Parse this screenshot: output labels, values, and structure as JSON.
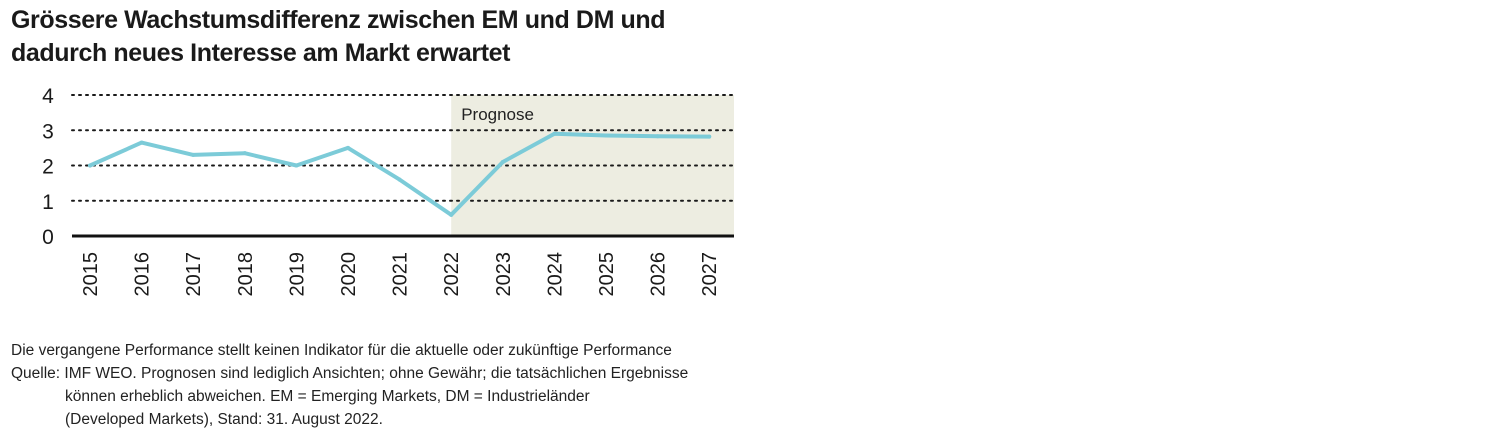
{
  "chart_data": {
    "type": "line",
    "title": "Grössere Wachstumsdifferenz zwischen EM und DM und dadurch neues Interesse am Markt erwartet",
    "xlabel": "",
    "ylabel": "",
    "x": [
      "2015",
      "2016",
      "2017",
      "2018",
      "2019",
      "2020",
      "2021",
      "2022",
      "2023",
      "2024",
      "2025",
      "2026",
      "2027"
    ],
    "series": [
      {
        "values": [
          2.0,
          2.65,
          2.3,
          2.35,
          2.0,
          2.5,
          1.6,
          0.6,
          2.1,
          2.9,
          2.85,
          2.83,
          2.82
        ]
      }
    ],
    "ylim": [
      0,
      4
    ],
    "yticks": [
      "0",
      "1",
      "2",
      "3",
      "4"
    ],
    "grid": true,
    "forecast_region": {
      "label": "Prognose",
      "start": "2022"
    },
    "colors": {
      "line": "#7ccbd8",
      "forecast_bg": "#edede1",
      "grid": "#1a1a1a",
      "axis": "#111111"
    }
  },
  "notes": {
    "line1": "Die vergangene Performance stellt keinen Indikator für die aktuelle oder zukünftige Performance",
    "line2": "Quelle: IMF WEO. Prognosen sind lediglich Ansichten; ohne Gewähr; die tatsächlichen Ergebnisse",
    "line3": "können erheblich abweichen. EM = Emerging Markets, DM = Industrieländer",
    "line4": "(Developed Markets), Stand: 31. August 2022."
  }
}
